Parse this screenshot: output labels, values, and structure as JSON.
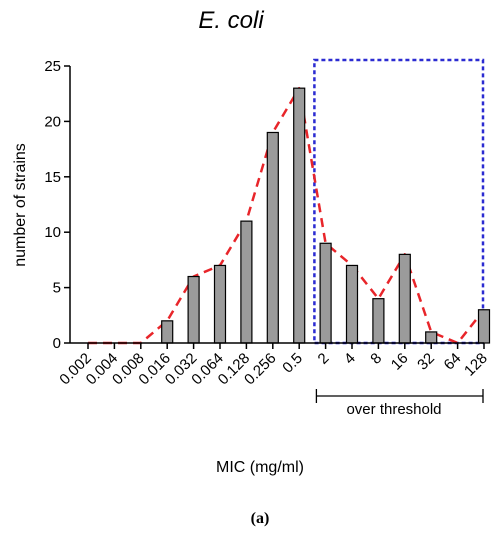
{
  "chart_data": {
    "type": "bar",
    "title": "E. coli",
    "xlabel": "MIC (mg/ml)",
    "ylabel": "number of strains",
    "categories": [
      "0.002",
      "0.004",
      "0.008",
      "0.016",
      "0.032",
      "0.064",
      "0.128",
      "0.256",
      "0.5",
      "2",
      "4",
      "8",
      "16",
      "32",
      "64",
      "128"
    ],
    "values": [
      0,
      0,
      0,
      2,
      6,
      7,
      11,
      19,
      23,
      9,
      7,
      4,
      8,
      1,
      0,
      3
    ],
    "yticks": [
      "0",
      "5",
      "10",
      "15",
      "20",
      "25"
    ],
    "ylim": [
      0,
      25
    ],
    "trend_line": {
      "style": "dashed",
      "color": "#e8252a"
    },
    "highlight": {
      "label": "over threshold",
      "from_category": "2",
      "to_category": "128",
      "color": "#2b2bd1"
    },
    "bar_color": "#9b9b9b",
    "grid": false,
    "legend": "none"
  },
  "caption": "(a)"
}
